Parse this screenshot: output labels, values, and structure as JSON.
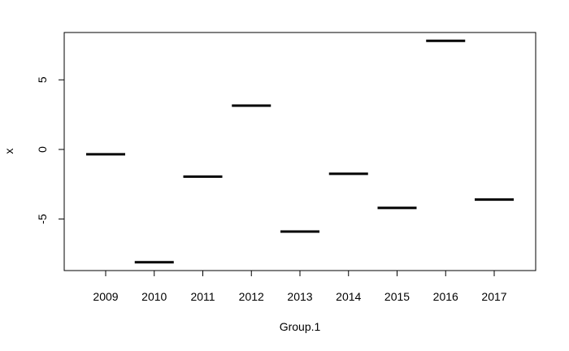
{
  "chart_data": {
    "type": "line",
    "title": "",
    "xlabel": "Group.1",
    "ylabel": "x",
    "categories": [
      "2009",
      "2010",
      "2011",
      "2012",
      "2013",
      "2014",
      "2015",
      "2016",
      "2017"
    ],
    "values": [
      -0.35,
      -8.1,
      -1.95,
      3.15,
      -5.9,
      -1.75,
      -4.2,
      7.8,
      -3.6
    ],
    "ylim": [
      -8.7,
      8.4
    ],
    "yticks": [
      -5,
      0,
      5
    ],
    "grid": false
  }
}
